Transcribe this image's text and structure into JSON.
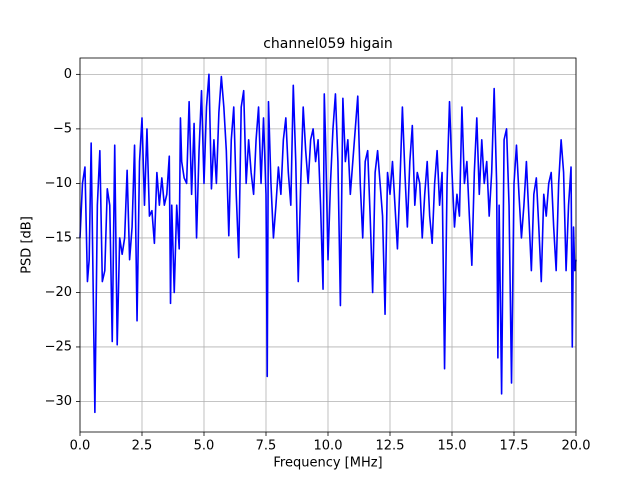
{
  "chart_data": {
    "type": "line",
    "title": "channel059 higain",
    "xlabel": "Frequency [MHz]",
    "ylabel": "PSD [dB]",
    "xlim": [
      0,
      20
    ],
    "ylim": [
      -32.8,
      1.5
    ],
    "xticks": [
      {
        "value": 0,
        "label": "0.0"
      },
      {
        "value": 2.5,
        "label": "2.5"
      },
      {
        "value": 5,
        "label": "5.0"
      },
      {
        "value": 7.5,
        "label": "7.5"
      },
      {
        "value": 10,
        "label": "10.0"
      },
      {
        "value": 12.5,
        "label": "12.5"
      },
      {
        "value": 15,
        "label": "15.0"
      },
      {
        "value": 17.5,
        "label": "17.5"
      },
      {
        "value": 20,
        "label": "20.0"
      }
    ],
    "yticks": [
      0,
      {
        "value": -5,
        "label": "−5"
      },
      {
        "value": -10,
        "label": "−10"
      },
      {
        "value": -15,
        "label": "−15"
      },
      {
        "value": -20,
        "label": "−20"
      },
      {
        "value": -25,
        "label": "−25"
      },
      {
        "value": -30,
        "label": "−30"
      }
    ],
    "grid": true,
    "series": [
      {
        "color": "#0000ff",
        "x": [
          0,
          0.1,
          0.2,
          0.3,
          0.37,
          0.45,
          0.6,
          0.7,
          0.8,
          0.9,
          1.0,
          1.1,
          1.2,
          1.3,
          1.4,
          1.5,
          1.6,
          1.7,
          1.8,
          1.9,
          2.0,
          2.1,
          2.2,
          2.3,
          2.4,
          2.5,
          2.6,
          2.7,
          2.8,
          2.9,
          3.0,
          3.1,
          3.2,
          3.3,
          3.4,
          3.5,
          3.6,
          3.65,
          3.7,
          3.8,
          3.9,
          4.0,
          4.05,
          4.1,
          4.2,
          4.3,
          4.4,
          4.5,
          4.6,
          4.7,
          4.8,
          4.9,
          5.0,
          5.1,
          5.2,
          5.3,
          5.4,
          5.5,
          5.6,
          5.7,
          5.8,
          5.9,
          6.0,
          6.1,
          6.2,
          6.3,
          6.4,
          6.5,
          6.6,
          6.7,
          6.8,
          6.9,
          7.0,
          7.1,
          7.2,
          7.3,
          7.4,
          7.5,
          7.55,
          7.6,
          7.7,
          7.8,
          7.9,
          8.0,
          8.1,
          8.2,
          8.3,
          8.4,
          8.5,
          8.6,
          8.7,
          8.8,
          8.9,
          9.0,
          9.1,
          9.2,
          9.3,
          9.4,
          9.5,
          9.6,
          9.7,
          9.8,
          9.85,
          9.9,
          10.0,
          10.1,
          10.2,
          10.3,
          10.4,
          10.5,
          10.6,
          10.7,
          10.8,
          10.9,
          11.0,
          11.1,
          11.2,
          11.3,
          11.4,
          11.5,
          11.6,
          11.7,
          11.8,
          11.9,
          12.0,
          12.1,
          12.2,
          12.3,
          12.4,
          12.5,
          12.6,
          12.7,
          12.8,
          12.9,
          13.0,
          13.1,
          13.2,
          13.3,
          13.4,
          13.5,
          13.6,
          13.7,
          13.8,
          13.9,
          14.0,
          14.1,
          14.2,
          14.3,
          14.4,
          14.5,
          14.6,
          14.7,
          14.8,
          14.9,
          15.0,
          15.1,
          15.2,
          15.3,
          15.4,
          15.5,
          15.6,
          15.7,
          15.8,
          15.9,
          16.0,
          16.1,
          16.2,
          16.3,
          16.4,
          16.5,
          16.6,
          16.7,
          16.8,
          16.85,
          16.9,
          17.0,
          17.1,
          17.2,
          17.3,
          17.4,
          17.5,
          17.6,
          17.7,
          17.8,
          17.9,
          18.0,
          18.1,
          18.2,
          18.3,
          18.4,
          18.5,
          18.6,
          18.7,
          18.8,
          18.9,
          19.0,
          19.1,
          19.2,
          19.3,
          19.4,
          19.5,
          19.6,
          19.7,
          19.8,
          19.85,
          19.9,
          19.95,
          20.0
        ],
        "values": [
          -15,
          -10,
          -8.5,
          -19,
          -17,
          -6.3,
          -31,
          -12,
          -7,
          -19,
          -18,
          -10.5,
          -12,
          -24.5,
          -6.5,
          -24.8,
          -15,
          -16.5,
          -15,
          -8.8,
          -17,
          -14,
          -6.5,
          -22.6,
          -8,
          -4,
          -12,
          -5,
          -13,
          -12.5,
          -15.5,
          -9,
          -12,
          -9.5,
          -12,
          -11,
          -7.5,
          -21,
          -12,
          -20,
          -12,
          -16,
          -4,
          -8,
          -9.5,
          -10,
          -2.5,
          -11,
          -4.5,
          -15,
          -7,
          -1.5,
          -10,
          -3,
          0,
          -10.5,
          -6,
          -10,
          -3.5,
          -0.2,
          -3,
          -7,
          -14.8,
          -6,
          -3,
          -11,
          -16.8,
          -3,
          -1.5,
          -10,
          -6,
          -9,
          -11,
          -6,
          -3,
          -10,
          -4,
          -11,
          -27.7,
          -2.5,
          -10,
          -15,
          -12,
          -8.5,
          -11,
          -6,
          -4,
          -9,
          -12,
          -1,
          -8,
          -19,
          -10,
          -3,
          -7,
          -10,
          -6,
          -5,
          -8,
          -6,
          -12,
          -19.7,
          -1.8,
          -6,
          -17,
          -10,
          -5,
          -1.8,
          -8,
          -21.2,
          -2.2,
          -8,
          -6,
          -11,
          -8,
          -5,
          -2,
          -10,
          -15,
          -8,
          -7,
          -13,
          -20,
          -9,
          -7,
          -10,
          -13,
          -22,
          -9,
          -11,
          -8,
          -12,
          -16,
          -10,
          -3,
          -9,
          -14,
          -8,
          -4.7,
          -12,
          -9,
          -10,
          -15,
          -11,
          -8,
          -13,
          -15.5,
          -10,
          -7,
          -12,
          -9,
          -27,
          -10,
          -2.5,
          -9,
          -14,
          -11,
          -13,
          -3,
          -10,
          -8,
          -13,
          -17.5,
          -9,
          -4,
          -11,
          -6,
          -10,
          -8,
          -13,
          -9,
          -1.3,
          -10,
          -26,
          -12,
          -29.3,
          -6,
          -5,
          -12,
          -28.3,
          -10,
          -6.5,
          -11,
          -15,
          -12,
          -8,
          -13,
          -18,
          -11,
          -9.5,
          -14,
          -19,
          -11,
          -13,
          -10,
          -9,
          -14,
          -18,
          -10,
          -6,
          -9,
          -18,
          -12,
          -8.5,
          -25,
          -14,
          -18,
          -17
        ]
      }
    ]
  }
}
